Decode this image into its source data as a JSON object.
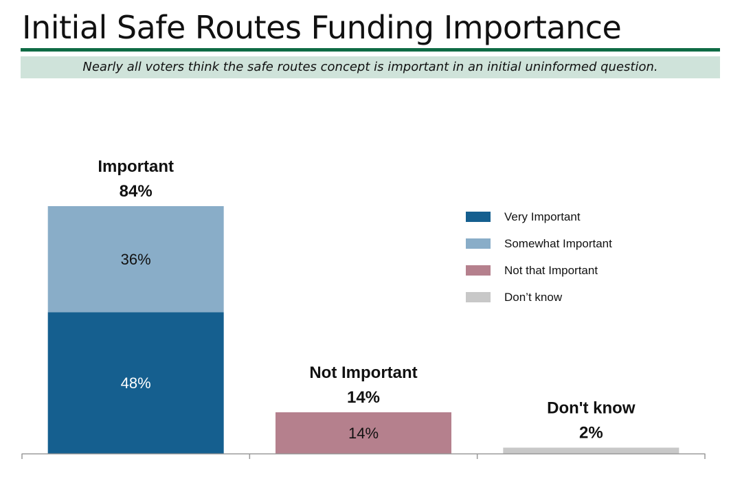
{
  "title": "Initial Safe Routes Funding Importance",
  "subtitle": "Nearly all voters think the safe routes concept is important in an initial uninformed question.",
  "colors": {
    "very_important": "#155f8f",
    "somewhat_important": "#89adc8",
    "not_that_important": "#b5808d",
    "dont_know": "#c8c8c8",
    "title_rule": "#0f6b45",
    "subtitle_band": "#cfe3da"
  },
  "chart_data": {
    "type": "bar",
    "stacked": true,
    "categories": [
      "Important",
      "Not Important",
      "Don't know"
    ],
    "category_totals": [
      "84%",
      "14%",
      "2%"
    ],
    "ylim": [
      0,
      100
    ],
    "grid": false,
    "legend_position": "right",
    "series": [
      {
        "name": "Very Important",
        "values": [
          48,
          0,
          0
        ],
        "labels": [
          "48%",
          "",
          ""
        ]
      },
      {
        "name": "Somewhat Important",
        "values": [
          36,
          0,
          0
        ],
        "labels": [
          "36%",
          "",
          ""
        ]
      },
      {
        "name": "Not that Important",
        "values": [
          0,
          14,
          0
        ],
        "labels": [
          "",
          "14%",
          ""
        ]
      },
      {
        "name": "Don’t know",
        "values": [
          0,
          0,
          2
        ],
        "labels": [
          "",
          "",
          ""
        ]
      }
    ]
  }
}
